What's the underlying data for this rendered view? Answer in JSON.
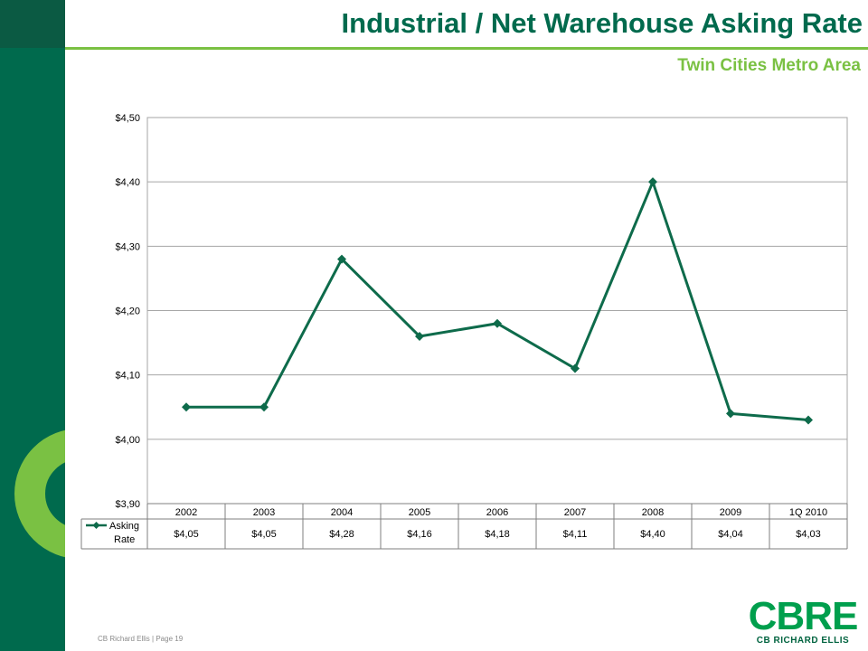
{
  "header": {
    "title": "Industrial / Net Warehouse Asking Rate",
    "subtitle": "Twin Cities Metro Area"
  },
  "footer": {
    "company": "CB Richard Ellis",
    "separator": "|",
    "page": "Page 19"
  },
  "logo": {
    "mark": "CBRE",
    "name": "CB RICHARD ELLIS"
  },
  "colors": {
    "brand_dark_green": "#006a4d",
    "brand_light_green": "#7ac143",
    "series_line": "#0e6b4b"
  },
  "chart_data": {
    "type": "line",
    "title": "",
    "xlabel": "",
    "ylabel": "",
    "categories": [
      "2002",
      "2003",
      "2004",
      "2005",
      "2006",
      "2007",
      "2008",
      "2009",
      "1Q 2010"
    ],
    "ylim": [
      3.9,
      4.5
    ],
    "yticks": [
      3.9,
      4.0,
      4.1,
      4.2,
      4.3,
      4.4,
      4.5
    ],
    "ytick_labels": [
      "$3,90",
      "$4,00",
      "$4,10",
      "$4,20",
      "$4,30",
      "$4,40",
      "$4,50"
    ],
    "grid": true,
    "legend": "data-table",
    "series": [
      {
        "name": "Asking Rate",
        "values": [
          4.05,
          4.05,
          4.28,
          4.16,
          4.18,
          4.11,
          4.4,
          4.04,
          4.03
        ],
        "labels": [
          "$4,05",
          "$4,05",
          "$4,28",
          "$4,16",
          "$4,18",
          "$4,11",
          "$4,40",
          "$4,04",
          "$4,03"
        ]
      }
    ]
  }
}
